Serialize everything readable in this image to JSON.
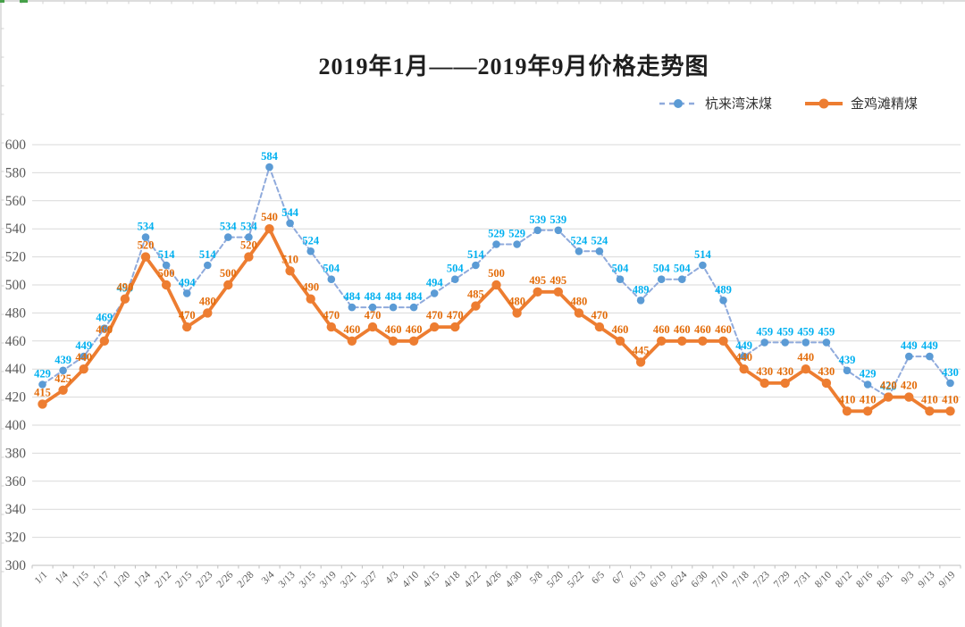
{
  "chart_data": {
    "type": "line",
    "title": "2019年1月——2019年9月价格走势图",
    "categories": [
      "1/1",
      "1/4",
      "1/15",
      "1/17",
      "1/20",
      "1/24",
      "2/12",
      "2/15",
      "2/23",
      "2/26",
      "2/28",
      "3/4",
      "3/13",
      "3/15",
      "3/19",
      "3/21",
      "3/27",
      "4/3",
      "4/10",
      "4/15",
      "4/18",
      "4/22",
      "4/26",
      "4/30",
      "5/8",
      "5/20",
      "5/22",
      "6/5",
      "6/7",
      "6/13",
      "6/19",
      "6/24",
      "6/30",
      "7/10",
      "7/18",
      "7/23",
      "7/29",
      "7/31",
      "8/10",
      "8/12",
      "8/16",
      "8/31",
      "9/3",
      "9/13",
      "9/19"
    ],
    "series": [
      {
        "name": "杭来湾沫煤",
        "style": "dashed",
        "line_color": "#8FAADC",
        "marker_color": "#5B9BD5",
        "label_color": "#00B0F0",
        "values": [
          429,
          439,
          449,
          469,
          490,
          534,
          514,
          494,
          514,
          534,
          534,
          584,
          544,
          524,
          504,
          484,
          484,
          484,
          484,
          494,
          504,
          514,
          529,
          529,
          539,
          539,
          524,
          524,
          504,
          489,
          504,
          504,
          514,
          489,
          449,
          459,
          459,
          459,
          459,
          439,
          429,
          420,
          449,
          449,
          430
        ]
      },
      {
        "name": "金鸡滩精煤",
        "style": "solid",
        "line_color": "#ED7D31",
        "marker_color": "#ED7D31",
        "label_color": "#E36C0A",
        "values": [
          415,
          425,
          440,
          460,
          490,
          520,
          500,
          470,
          480,
          500,
          520,
          540,
          510,
          490,
          470,
          460,
          470,
          460,
          460,
          470,
          470,
          485,
          500,
          480,
          495,
          495,
          480,
          470,
          460,
          445,
          460,
          460,
          460,
          460,
          440,
          430,
          430,
          440,
          430,
          410,
          410,
          420,
          420,
          410,
          410
        ]
      }
    ],
    "ylim": [
      300,
      600
    ],
    "ytick_step": 20,
    "grid": true,
    "data_labels": true,
    "legend_position": "top-right"
  },
  "colors": {
    "background": "#FFFFFF",
    "grid": "#D9D9D9",
    "axis_line": "#BFBFBF",
    "axis_text": "#595959",
    "sheet_edge": "#D2D2D2",
    "sheet_green": "#46A049"
  }
}
